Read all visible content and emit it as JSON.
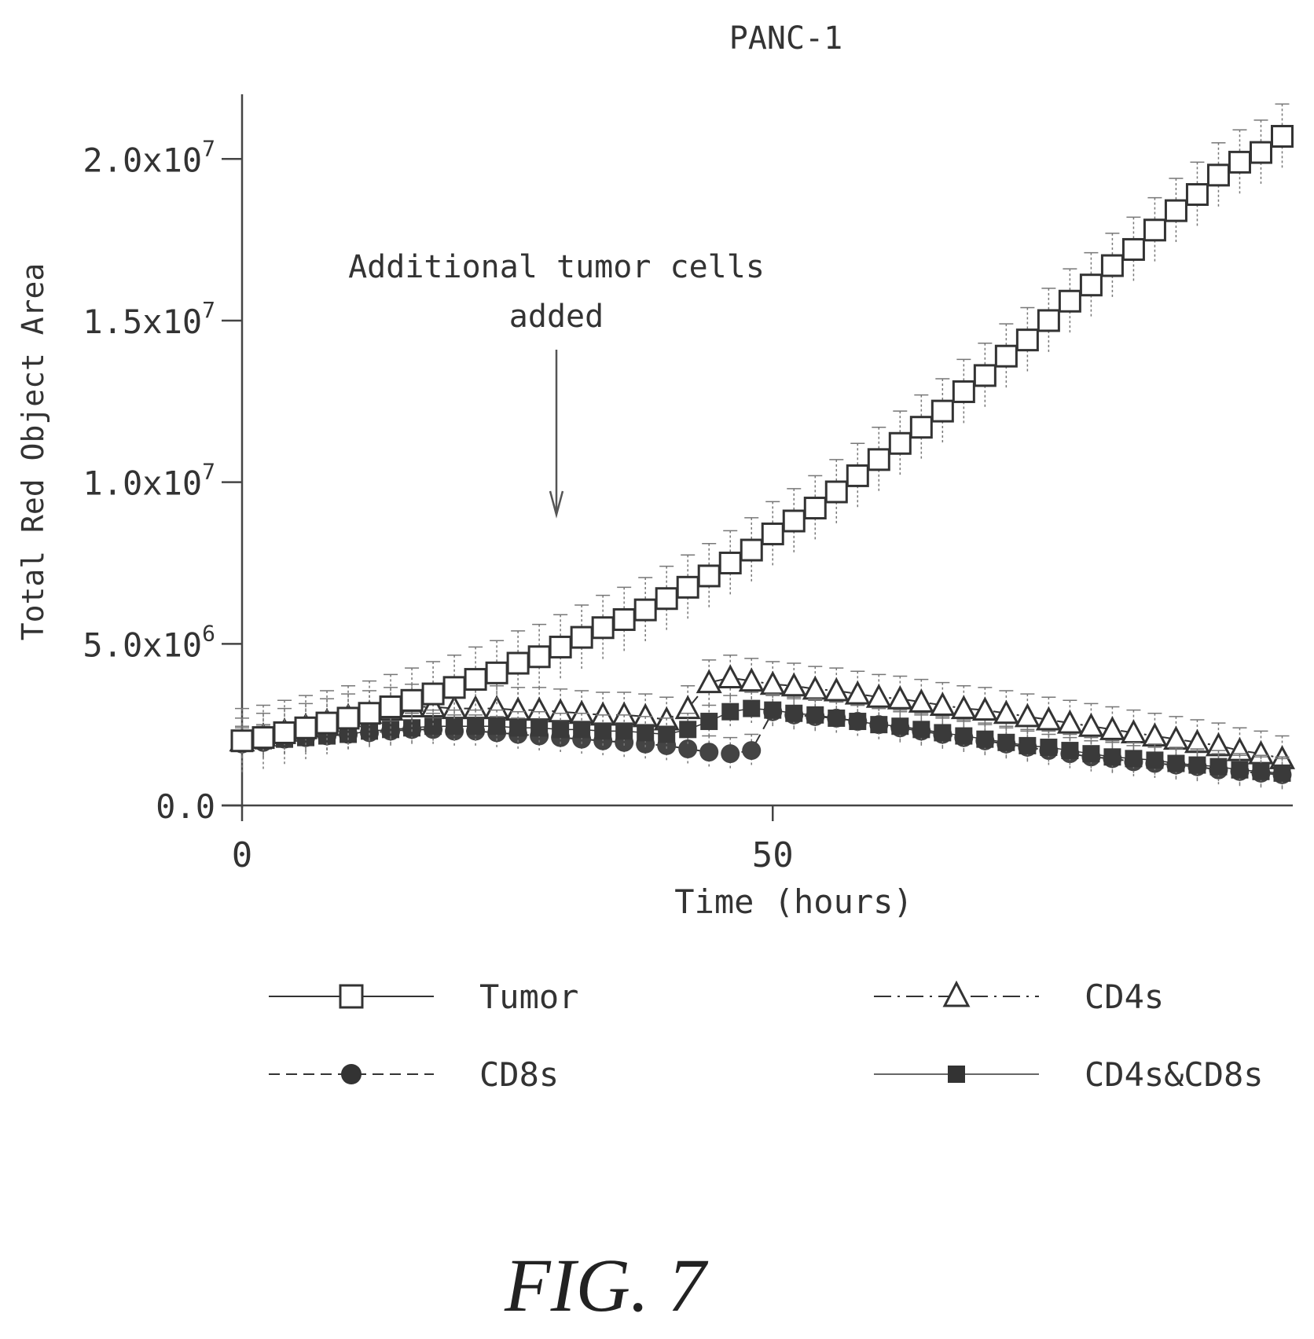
{
  "chart_data": {
    "type": "line",
    "title": "PANC-1",
    "xlabel": "Time (hours)",
    "ylabel": "Total Red Object Area",
    "xlim": [
      0,
      99
    ],
    "ylim": [
      0,
      22000000
    ],
    "x_ticks": [
      {
        "value": 0,
        "label": "0"
      },
      {
        "value": 50,
        "label": "50"
      }
    ],
    "y_ticks": [
      {
        "value": 0,
        "mant": "0.0",
        "exp": ""
      },
      {
        "value": 5000000,
        "mant": "5.0x10",
        "exp": "6"
      },
      {
        "value": 10000000,
        "mant": "1.0x10",
        "exp": "7"
      },
      {
        "value": 15000000,
        "mant": "1.5x10",
        "exp": "7"
      },
      {
        "value": 20000000,
        "mant": "2.0x10",
        "exp": "7"
      }
    ],
    "grid": false,
    "annotation": {
      "lines": [
        "Additional tumor cells",
        "added"
      ],
      "x": 29
    },
    "legend": {
      "placement": "bottom",
      "columns": 2
    },
    "x": [
      0,
      2,
      4,
      6,
      8,
      10,
      12,
      14,
      16,
      18,
      20,
      22,
      24,
      26,
      28,
      30,
      32,
      34,
      36,
      38,
      40,
      42,
      44,
      46,
      48,
      50,
      52,
      54,
      56,
      58,
      60,
      62,
      64,
      66,
      68,
      70,
      72,
      74,
      76,
      78,
      80,
      82,
      84,
      86,
      88,
      90,
      92,
      94,
      96,
      98
    ],
    "series": [
      {
        "name": "Tumor",
        "marker": "square-open",
        "line": "solid",
        "error": 1000000,
        "values": [
          2000000,
          2100000,
          2250000,
          2400000,
          2550000,
          2700000,
          2850000,
          3050000,
          3250000,
          3450000,
          3650000,
          3900000,
          4100000,
          4400000,
          4600000,
          4900000,
          5200000,
          5500000,
          5750000,
          6050000,
          6400000,
          6750000,
          7100000,
          7500000,
          7900000,
          8400000,
          8800000,
          9200000,
          9700000,
          10200000,
          10700000,
          11200000,
          11700000,
          12200000,
          12800000,
          13300000,
          13900000,
          14400000,
          15000000,
          15600000,
          16100000,
          16700000,
          17200000,
          17800000,
          18400000,
          18900000,
          19500000,
          19900000,
          20200000,
          20700000
        ]
      },
      {
        "name": "CD4s",
        "marker": "triangle-open",
        "line": "dash-dot",
        "error": 700000,
        "values": [
          2000000,
          2150000,
          2300000,
          2450000,
          2600000,
          2750000,
          2850000,
          2950000,
          3050000,
          3050000,
          3000000,
          3000000,
          3000000,
          2950000,
          2950000,
          2900000,
          2850000,
          2800000,
          2800000,
          2750000,
          2650000,
          3000000,
          3800000,
          3950000,
          3850000,
          3750000,
          3700000,
          3600000,
          3550000,
          3450000,
          3350000,
          3300000,
          3200000,
          3100000,
          3000000,
          2950000,
          2850000,
          2750000,
          2650000,
          2550000,
          2450000,
          2350000,
          2250000,
          2150000,
          2050000,
          1950000,
          1850000,
          1700000,
          1600000,
          1450000
        ]
      },
      {
        "name": "CD8s",
        "marker": "circle-filled",
        "line": "dashed",
        "error": 500000,
        "values": [
          1900000,
          1950000,
          2050000,
          2100000,
          2150000,
          2200000,
          2250000,
          2300000,
          2350000,
          2350000,
          2300000,
          2300000,
          2250000,
          2200000,
          2150000,
          2100000,
          2050000,
          2000000,
          1950000,
          1900000,
          1850000,
          1750000,
          1650000,
          1600000,
          1700000,
          2900000,
          2800000,
          2750000,
          2700000,
          2600000,
          2500000,
          2400000,
          2300000,
          2200000,
          2100000,
          2000000,
          1900000,
          1800000,
          1700000,
          1600000,
          1500000,
          1450000,
          1350000,
          1300000,
          1250000,
          1200000,
          1100000,
          1050000,
          1000000,
          950000
        ]
      },
      {
        "name": "CD4s&CD8s",
        "marker": "square-filled",
        "line": "solid-thin",
        "error": 500000,
        "values": [
          1950000,
          2000000,
          2050000,
          2100000,
          2150000,
          2200000,
          2300000,
          2350000,
          2400000,
          2450000,
          2450000,
          2450000,
          2450000,
          2400000,
          2400000,
          2350000,
          2350000,
          2300000,
          2300000,
          2250000,
          2200000,
          2350000,
          2600000,
          2900000,
          3000000,
          2950000,
          2850000,
          2800000,
          2700000,
          2600000,
          2500000,
          2450000,
          2350000,
          2250000,
          2150000,
          2050000,
          1950000,
          1850000,
          1800000,
          1700000,
          1600000,
          1500000,
          1450000,
          1400000,
          1300000,
          1250000,
          1200000,
          1100000,
          1050000,
          1000000
        ]
      }
    ]
  },
  "figure_label": "FIG. 7"
}
